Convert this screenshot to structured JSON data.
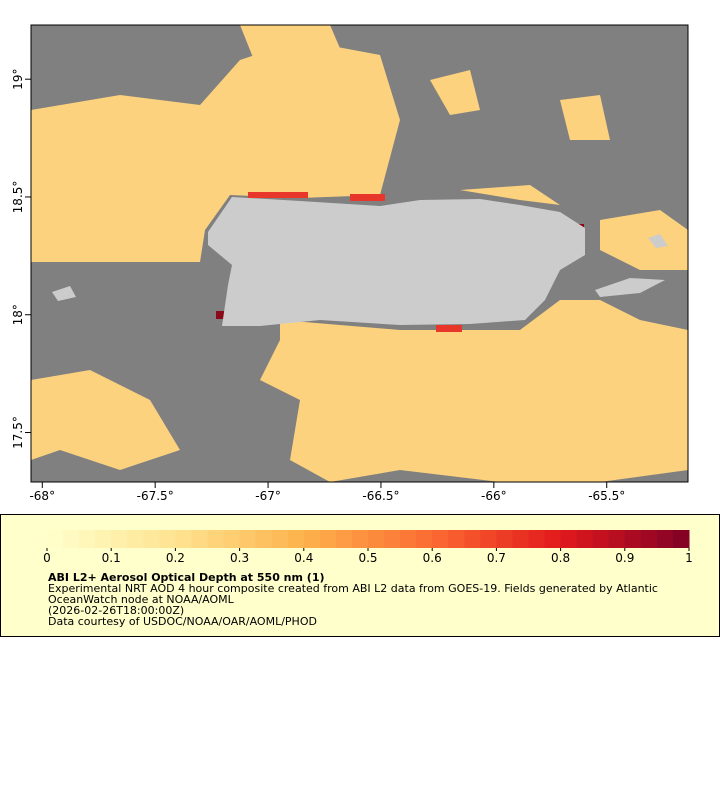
{
  "map": {
    "type": "map",
    "xlim": [
      -68.05,
      -65.14
    ],
    "ylim": [
      17.29,
      19.23
    ],
    "xticks": [
      {
        "value": -68,
        "label": "-68°"
      },
      {
        "value": -67.5,
        "label": "-67.5°"
      },
      {
        "value": -67,
        "label": "-67°"
      },
      {
        "value": -66.5,
        "label": "-66.5°"
      },
      {
        "value": -66,
        "label": "-66°"
      },
      {
        "value": -65.5,
        "label": "-65.5°"
      }
    ],
    "yticks": [
      {
        "value": 17.5,
        "label": "17.5°"
      },
      {
        "value": 18,
        "label": "18°"
      },
      {
        "value": 18.5,
        "label": "18.5°"
      },
      {
        "value": 19,
        "label": "19°"
      }
    ]
  },
  "colorbar": {
    "range": [
      0,
      1
    ],
    "ticks": [
      0,
      0.1,
      0.2,
      0.3,
      0.4,
      0.5,
      0.6,
      0.7,
      0.8,
      0.9,
      1
    ],
    "colormap": [
      "#ffffcc",
      "#fee391",
      "#fdb24c",
      "#fc6a32",
      "#e2191c",
      "#800026"
    ],
    "title": "ABI L2+ Aerosol Optical Depth at 550 nm (1)",
    "notes": [
      "Experimental NRT AOD 4 hour composite created from ABI L2 data from GOES-19. Fields generated by Atlantic",
      "OceanWatch node at NOAA/AOML",
      "(2026-02-26T18:00:00Z)",
      "Data courtesy of USDOC/NOAA/OAR/AOML/PHOD"
    ]
  }
}
